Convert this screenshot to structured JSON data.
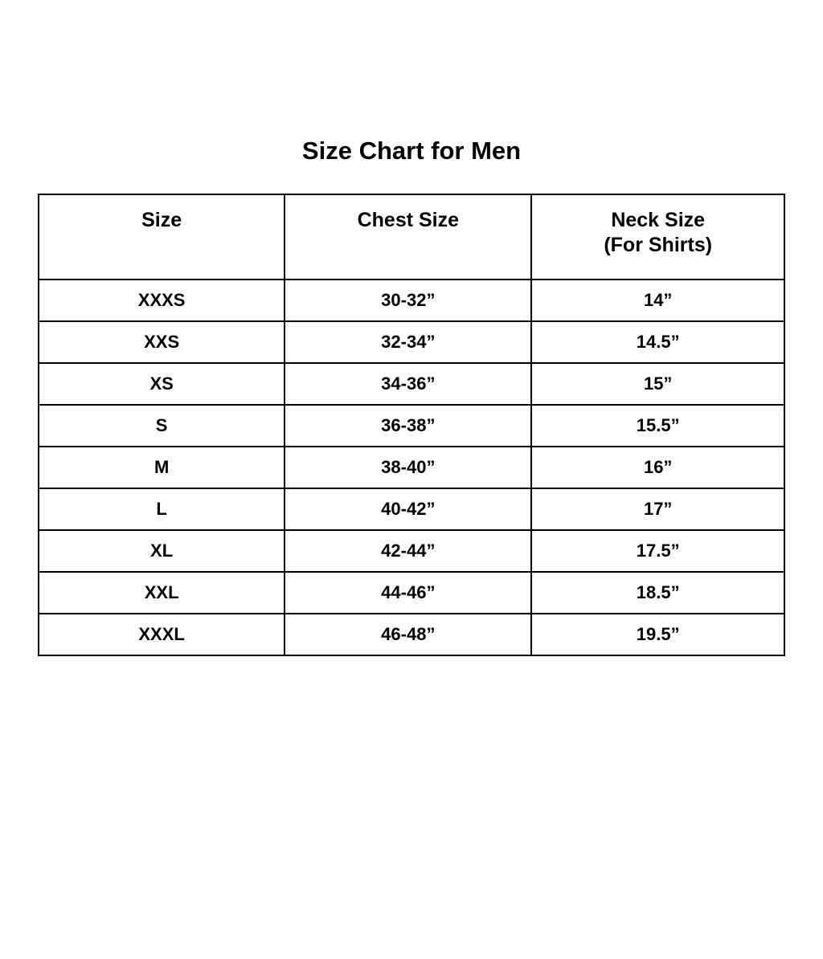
{
  "page": {
    "title": "Size Chart for Men"
  },
  "colors": {
    "background": "#ffffff",
    "text": "#000000",
    "border": "#000000"
  },
  "chart_data": {
    "type": "table",
    "title": "Size Chart for Men",
    "columns": [
      {
        "label": "Size",
        "sublabel": ""
      },
      {
        "label": "Chest Size",
        "sublabel": ""
      },
      {
        "label": "Neck Size",
        "sublabel": "(For Shirts)"
      }
    ],
    "rows": [
      [
        "XXXS",
        "30-32”",
        "14”"
      ],
      [
        "XXS",
        "32-34”",
        "14.5”"
      ],
      [
        "XS",
        "34-36”",
        "15”"
      ],
      [
        "S",
        "36-38”",
        "15.5”"
      ],
      [
        "M",
        "38-40”",
        "16”"
      ],
      [
        "L",
        "40-42”",
        "17”"
      ],
      [
        "XL",
        "42-44”",
        "17.5”"
      ],
      [
        "XXL",
        "44-46”",
        "18.5”"
      ],
      [
        "XXXL",
        "46-48”",
        "19.5”"
      ]
    ]
  }
}
